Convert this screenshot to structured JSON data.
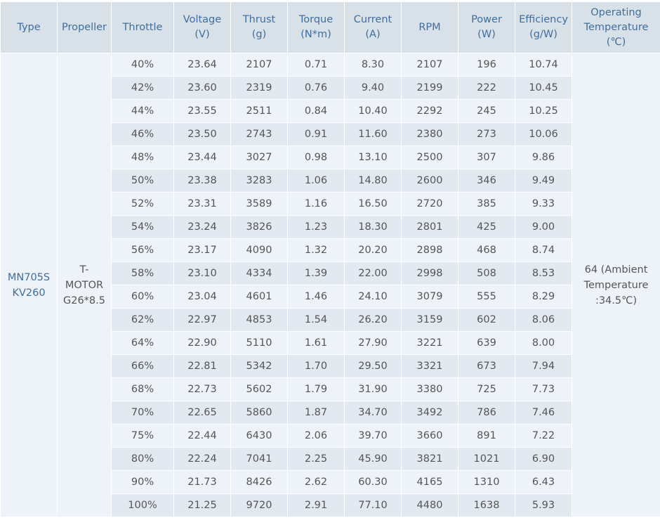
{
  "headers": [
    "Type",
    "Propeller",
    "Throttle",
    "Voltage\n(V)",
    "Thrust\n(g)",
    "Torque\n(N*m)",
    "Current\n(A)",
    "RPM",
    "Power\n(W)",
    "Efficiency\n(g/W)",
    "Operating\nTemperature\n(℃)"
  ],
  "type": "MN705S KV260",
  "propeller": "T-MOTOR G26*8.5",
  "operating_temperature": "64 (Ambient Temperature :34.5℃)",
  "rows": [
    [
      "40%",
      "23.64",
      "2107",
      "0.71",
      "8.30",
      "2107",
      "196",
      "10.74"
    ],
    [
      "42%",
      "23.60",
      "2319",
      "0.76",
      "9.40",
      "2199",
      "222",
      "10.45"
    ],
    [
      "44%",
      "23.55",
      "2511",
      "0.84",
      "10.40",
      "2292",
      "245",
      "10.25"
    ],
    [
      "46%",
      "23.50",
      "2743",
      "0.91",
      "11.60",
      "2380",
      "273",
      "10.06"
    ],
    [
      "48%",
      "23.44",
      "3027",
      "0.98",
      "13.10",
      "2500",
      "307",
      "9.86"
    ],
    [
      "50%",
      "23.38",
      "3283",
      "1.06",
      "14.80",
      "2600",
      "346",
      "9.49"
    ],
    [
      "52%",
      "23.31",
      "3589",
      "1.16",
      "16.50",
      "2720",
      "385",
      "9.33"
    ],
    [
      "54%",
      "23.24",
      "3826",
      "1.23",
      "18.30",
      "2801",
      "425",
      "9.00"
    ],
    [
      "56%",
      "23.17",
      "4090",
      "1.32",
      "20.20",
      "2898",
      "468",
      "8.74"
    ],
    [
      "58%",
      "23.10",
      "4334",
      "1.39",
      "22.00",
      "2998",
      "508",
      "8.53"
    ],
    [
      "60%",
      "23.04",
      "4601",
      "1.46",
      "24.10",
      "3079",
      "555",
      "8.29"
    ],
    [
      "62%",
      "22.97",
      "4853",
      "1.54",
      "26.20",
      "3159",
      "602",
      "8.06"
    ],
    [
      "64%",
      "22.90",
      "5110",
      "1.61",
      "27.90",
      "3221",
      "639",
      "8.00"
    ],
    [
      "66%",
      "22.81",
      "5342",
      "1.70",
      "29.50",
      "3321",
      "673",
      "7.94"
    ],
    [
      "68%",
      "22.73",
      "5602",
      "1.79",
      "31.90",
      "3380",
      "725",
      "7.73"
    ],
    [
      "70%",
      "22.65",
      "5860",
      "1.87",
      "34.70",
      "3492",
      "786",
      "7.46"
    ],
    [
      "75%",
      "22.44",
      "6430",
      "2.06",
      "39.70",
      "3660",
      "891",
      "7.22"
    ],
    [
      "80%",
      "22.24",
      "7041",
      "2.25",
      "45.90",
      "3821",
      "1021",
      "6.90"
    ],
    [
      "90%",
      "21.73",
      "8426",
      "2.62",
      "60.30",
      "4165",
      "1310",
      "6.43"
    ],
    [
      "100%",
      "21.25",
      "9720",
      "2.91",
      "77.10",
      "4480",
      "1638",
      "5.93"
    ]
  ]
}
